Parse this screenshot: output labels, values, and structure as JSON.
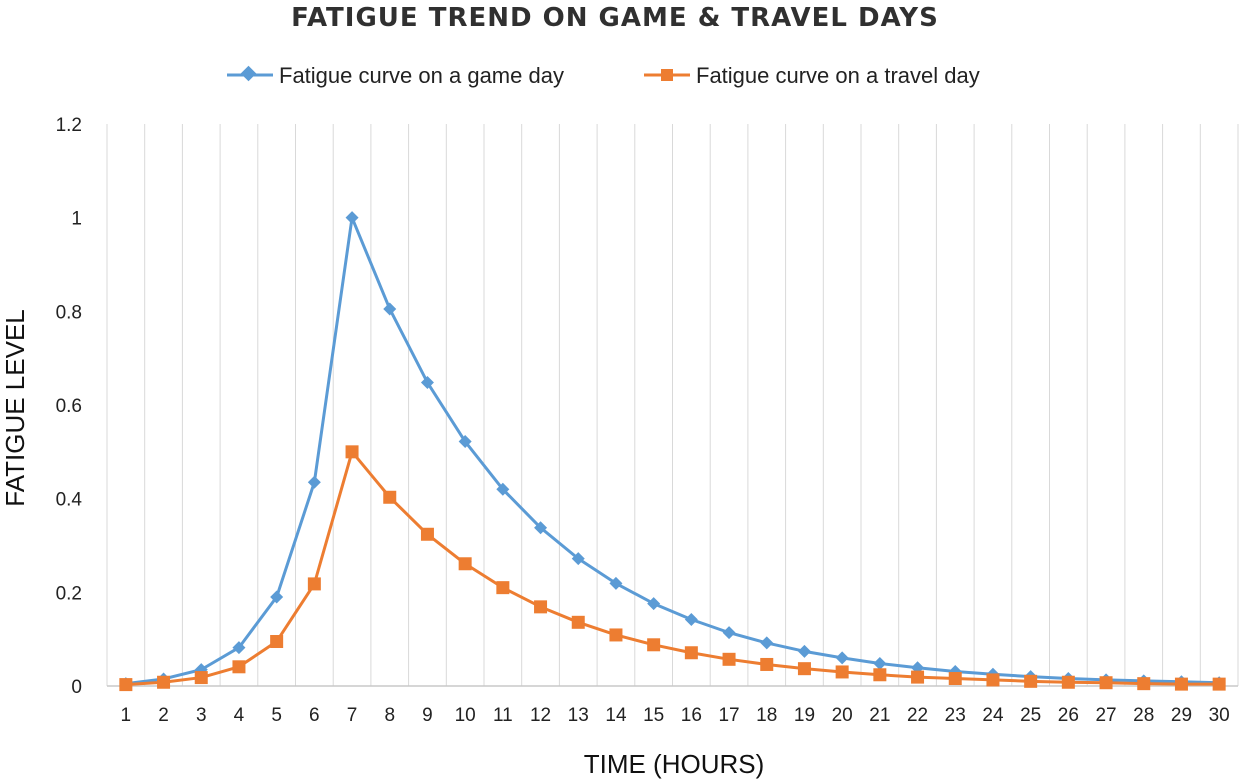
{
  "chart_data": {
    "type": "line",
    "title": "FATIGUE TREND ON GAME & TRAVEL DAYS",
    "xlabel": "TIME (HOURS)",
    "ylabel": "FATIGUE LEVEL",
    "x": [
      1,
      2,
      3,
      4,
      5,
      6,
      7,
      8,
      9,
      10,
      11,
      12,
      13,
      14,
      15,
      16,
      17,
      18,
      19,
      20,
      21,
      22,
      23,
      24,
      25,
      26,
      27,
      28,
      29,
      30
    ],
    "ylim": [
      0,
      1.2
    ],
    "yticks": [
      "0",
      "0.2",
      "0.4",
      "0.6",
      "0.8",
      "1",
      "1.2"
    ],
    "grid": "vertical",
    "legend_position": "top-center",
    "series": [
      {
        "name": "Fatigue curve on a game day",
        "color": "#5B9BD5",
        "marker": "diamond",
        "values": [
          0.005,
          0.015,
          0.035,
          0.082,
          0.19,
          0.435,
          1.0,
          0.805,
          0.648,
          0.522,
          0.42,
          0.338,
          0.272,
          0.219,
          0.176,
          0.142,
          0.114,
          0.092,
          0.074,
          0.06,
          0.048,
          0.039,
          0.031,
          0.025,
          0.02,
          0.016,
          0.013,
          0.011,
          0.009,
          0.007
        ]
      },
      {
        "name": "Fatigue curve on a travel day",
        "color": "#ED7D31",
        "marker": "square",
        "values": [
          0.003,
          0.008,
          0.018,
          0.041,
          0.095,
          0.218,
          0.5,
          0.403,
          0.324,
          0.261,
          0.21,
          0.169,
          0.136,
          0.109,
          0.088,
          0.071,
          0.057,
          0.046,
          0.037,
          0.03,
          0.024,
          0.019,
          0.016,
          0.013,
          0.01,
          0.008,
          0.007,
          0.005,
          0.004,
          0.004
        ]
      }
    ]
  }
}
